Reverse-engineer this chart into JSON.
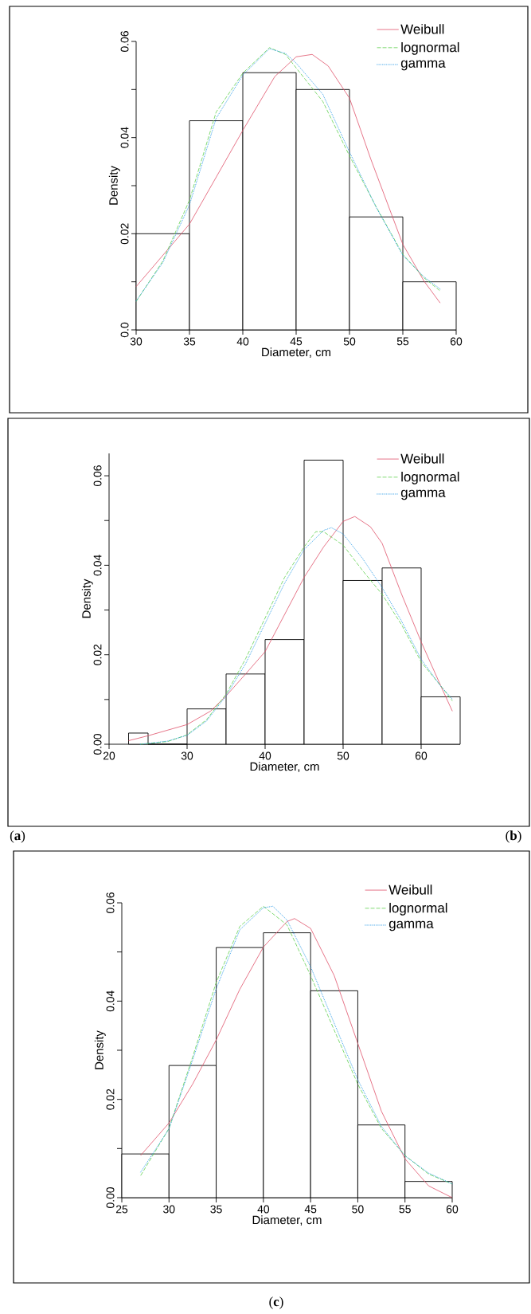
{
  "chart_data": [
    {
      "type": "histogram",
      "xlabel": "Diameter, cm",
      "ylabel": "Density",
      "bins": [
        30,
        35,
        40,
        45,
        50,
        55,
        60
      ],
      "values": [
        0.02,
        0.0435,
        0.0535,
        0.05,
        0.0235,
        0.01
      ],
      "xlim": [
        30,
        60
      ],
      "ylim": [
        0,
        0.06
      ],
      "xticks": [
        30,
        35,
        40,
        45,
        50,
        55,
        60
      ],
      "yticks": [
        {
          "value": 0,
          "label": "0.0"
        },
        {
          "value": 0.01,
          "label": null
        },
        0.02,
        {
          "value": 0.03,
          "label": null
        },
        0.04,
        {
          "value": 0.05,
          "label": null
        },
        0.06
      ],
      "legend": "top right",
      "annotations": [
        "(**a**)"
      ],
      "series": [
        {
          "name": "Weibull",
          "type": "line",
          "color": "#df536b",
          "line_style": "solid",
          "x": [
            30,
            35,
            40,
            43,
            45,
            46.5,
            48,
            50,
            52,
            55,
            57,
            58.5
          ],
          "values": [
            0.009,
            0.022,
            0.0415,
            0.0527,
            0.0568,
            0.0573,
            0.0549,
            0.0482,
            0.0355,
            0.0178,
            0.0101,
            0.0056
          ]
        },
        {
          "name": "lognormal",
          "type": "line",
          "color": "#61d04f",
          "line_style": "dashed",
          "x": [
            30,
            32.5,
            35,
            37.5,
            40,
            42.5,
            44,
            45,
            47.5,
            50,
            52.5,
            55,
            57,
            58.5
          ],
          "values": [
            0.0059,
            0.0143,
            0.027,
            0.0453,
            0.0534,
            0.0587,
            0.0573,
            0.0545,
            0.0475,
            0.0362,
            0.0256,
            0.0157,
            0.0108,
            0.0081
          ]
        },
        {
          "name": "gamma",
          "type": "line",
          "color": "#2297e6",
          "line_style": "dotted",
          "x": [
            30,
            32.5,
            35,
            37.5,
            40,
            42.5,
            44,
            45,
            47.5,
            50,
            52.5,
            55,
            57,
            58.5
          ],
          "values": [
            0.006,
            0.014,
            0.026,
            0.044,
            0.053,
            0.0585,
            0.0575,
            0.0555,
            0.049,
            0.037,
            0.0255,
            0.0155,
            0.011,
            0.0085
          ]
        }
      ]
    },
    {
      "type": "histogram",
      "xlabel": "Diameter, cm",
      "ylabel": "Density",
      "bins": [
        22.5,
        25,
        30,
        35,
        40,
        45,
        50,
        55,
        60,
        65
      ],
      "values": [
        0.0025,
        0,
        0.0079,
        0.0157,
        0.0234,
        0.0635,
        0.0366,
        0.0394,
        0.0106
      ],
      "xlim": [
        20,
        65
      ],
      "ylim": [
        0,
        0.065
      ],
      "xticks": [
        20,
        30,
        40,
        50,
        60
      ],
      "yticks": [
        {
          "value": 0,
          "label": "0.00"
        },
        {
          "value": 0.01,
          "label": null
        },
        0.02,
        {
          "value": 0.03,
          "label": null
        },
        0.04,
        {
          "value": 0.05,
          "label": null
        },
        0.06
      ],
      "legend": "top right",
      "annotations": [
        "(**b**)"
      ],
      "series": [
        {
          "name": "Weibull",
          "type": "line",
          "color": "#df536b",
          "line_style": "solid",
          "x": [
            22.5,
            25,
            30,
            33,
            35,
            37.5,
            40,
            42.5,
            45,
            47.5,
            50,
            51.5,
            53.5,
            55,
            57.5,
            60,
            62.5,
            64
          ],
          "values": [
            0.0008,
            0.0019,
            0.0044,
            0.0074,
            0.0108,
            0.0157,
            0.0207,
            0.029,
            0.0373,
            0.0441,
            0.0498,
            0.0509,
            0.0486,
            0.0449,
            0.0335,
            0.0229,
            0.0131,
            0.0074
          ]
        },
        {
          "name": "lognormal",
          "type": "line",
          "color": "#61d04f",
          "line_style": "dashed",
          "x": [
            24,
            27.5,
            30,
            32.5,
            35,
            37.5,
            40,
            42.5,
            45,
            46.5,
            47.5,
            50,
            52.5,
            55,
            57.5,
            60,
            62.5,
            64
          ],
          "values": [
            0,
            0.0006,
            0.0021,
            0.0055,
            0.0112,
            0.0191,
            0.0282,
            0.0373,
            0.0441,
            0.0475,
            0.0475,
            0.0445,
            0.0388,
            0.0335,
            0.0267,
            0.0184,
            0.0131,
            0.0097
          ]
        },
        {
          "name": "gamma",
          "type": "line",
          "color": "#2297e6",
          "line_style": "dotted",
          "x": [
            24,
            27.5,
            30,
            32.5,
            35,
            37.5,
            40,
            42.5,
            45,
            47.5,
            48.5,
            50,
            52.5,
            55,
            57.5,
            60,
            62.5,
            64
          ],
          "values": [
            0,
            0.0007,
            0.002,
            0.0052,
            0.0108,
            0.018,
            0.027,
            0.036,
            0.0435,
            0.0478,
            0.0484,
            0.047,
            0.0415,
            0.035,
            0.0275,
            0.019,
            0.013,
            0.0101
          ]
        }
      ]
    },
    {
      "type": "histogram",
      "xlabel": "Diameter, cm",
      "ylabel": "Density",
      "bins": [
        25,
        30,
        35,
        40,
        45,
        50,
        55,
        60
      ],
      "values": [
        0.0089,
        0.0269,
        0.0509,
        0.0539,
        0.0421,
        0.0148,
        0.0033
      ],
      "xlim": [
        25,
        60
      ],
      "ylim": [
        0,
        0.06
      ],
      "xticks": [
        25,
        30,
        35,
        40,
        45,
        50,
        55,
        60
      ],
      "yticks": [
        {
          "value": 0,
          "label": "0.00"
        },
        {
          "value": 0.01,
          "label": null
        },
        0.02,
        {
          "value": 0.03,
          "label": null
        },
        0.04,
        {
          "value": 0.05,
          "label": null
        },
        0.06
      ],
      "legend": "top right",
      "annotations": [
        "(**c**)"
      ],
      "series": [
        {
          "name": "Weibull",
          "type": "line",
          "color": "#df536b",
          "line_style": "solid",
          "x": [
            27,
            30,
            32.5,
            35,
            37.5,
            40,
            42.5,
            43.3,
            45,
            47.5,
            50,
            52.5,
            55,
            57.5,
            60
          ],
          "values": [
            0.0086,
            0.0152,
            0.0231,
            0.0321,
            0.0424,
            0.051,
            0.0562,
            0.0568,
            0.0548,
            0.0452,
            0.0314,
            0.0176,
            0.0079,
            0.0024,
            0
          ]
        },
        {
          "name": "lognormal",
          "type": "line",
          "color": "#61d04f",
          "line_style": "dashed",
          "x": [
            27,
            30,
            32.5,
            35,
            37.5,
            40,
            42.5,
            45,
            47.5,
            50,
            52.5,
            55,
            57.5,
            60
          ],
          "values": [
            0.0045,
            0.0141,
            0.0286,
            0.0438,
            0.0552,
            0.0593,
            0.0555,
            0.0452,
            0.0341,
            0.0231,
            0.0141,
            0.0086,
            0.0048,
            0.0028
          ]
        },
        {
          "name": "gamma",
          "type": "line",
          "color": "#2297e6",
          "line_style": "dotted",
          "x": [
            27,
            30,
            32.5,
            35,
            37.5,
            40,
            41,
            42.5,
            45,
            47.5,
            50,
            52.5,
            55,
            57.5,
            60
          ],
          "values": [
            0.0052,
            0.014,
            0.028,
            0.0425,
            0.0545,
            0.059,
            0.0593,
            0.0565,
            0.047,
            0.0355,
            0.024,
            0.0145,
            0.0085,
            0.005,
            0.0028
          ]
        }
      ]
    }
  ]
}
